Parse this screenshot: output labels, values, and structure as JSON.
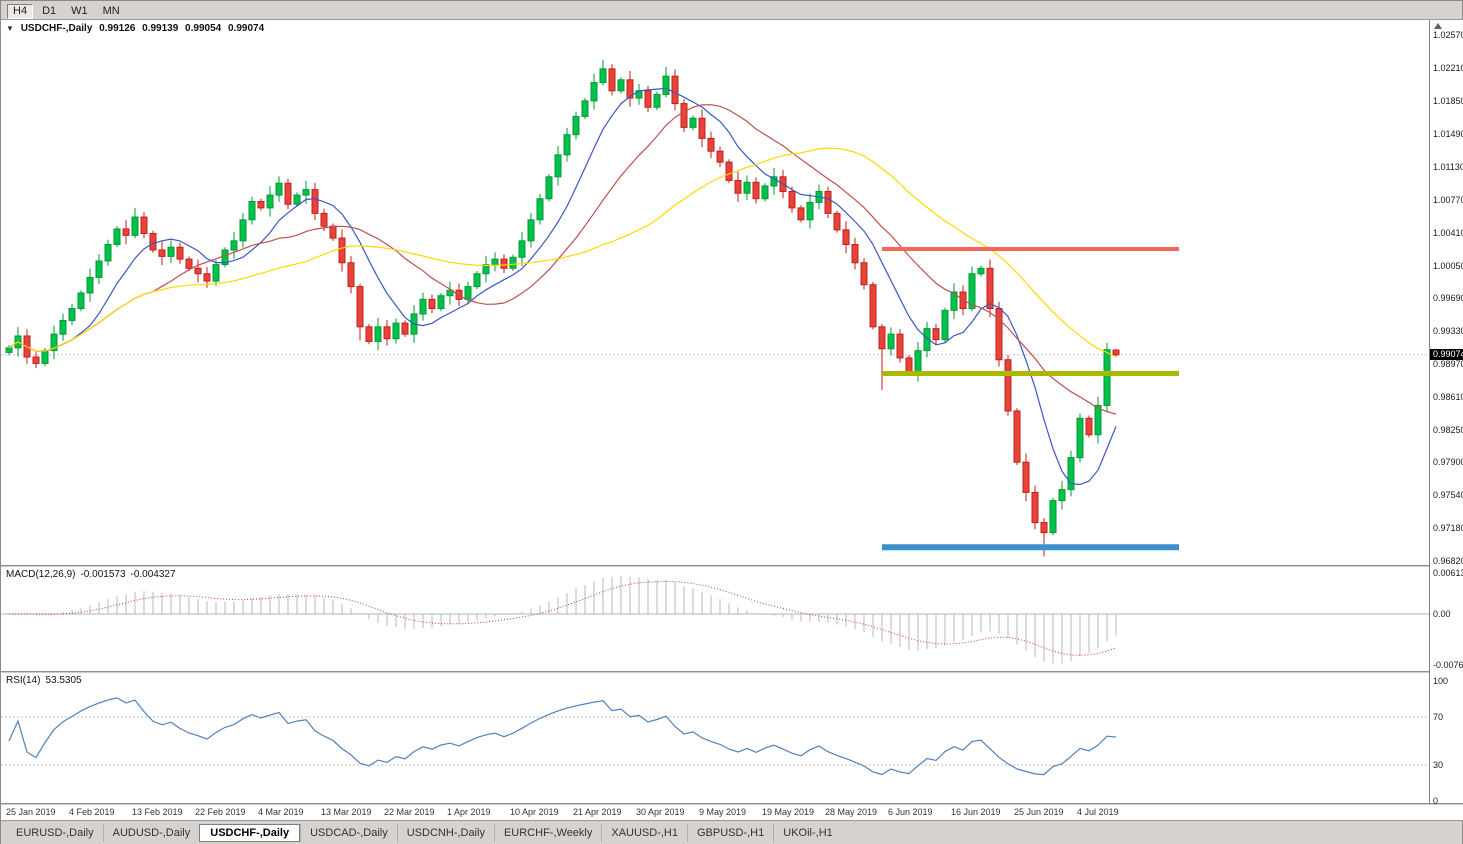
{
  "toolbar": {
    "timeframes": [
      {
        "label": "H4",
        "active": true
      },
      {
        "label": "D1",
        "active": false
      },
      {
        "label": "W1",
        "active": false
      },
      {
        "label": "MN",
        "active": false
      }
    ]
  },
  "chart": {
    "collapse_icon": "▼",
    "symbol": "USDCHF-,Daily",
    "quote": {
      "open": "0.99126",
      "high": "0.99139",
      "low": "0.99054",
      "close": "0.99074"
    },
    "current_price_label": "0.99074",
    "price_ticks": [
      "1.02570",
      "1.02210",
      "1.01850",
      "1.01490",
      "1.01130",
      "1.00770",
      "1.00410",
      "1.00050",
      "0.99690",
      "0.99330",
      "0.98970",
      "0.98610",
      "0.98250",
      "0.97900",
      "0.97540",
      "0.97180",
      "0.96820"
    ]
  },
  "macd_panel": {
    "label": "MACD(12,26,9)",
    "main_value": "-0.001573",
    "signal_value": "-0.004327",
    "axis_ticks": [
      {
        "text": "0.00613",
        "v": 0.00613
      },
      {
        "text": "0.00",
        "v": 0
      },
      {
        "text": "-0.00761",
        "v": -0.00761
      }
    ]
  },
  "rsi_panel": {
    "label": "RSI(14)",
    "value": "53.5305",
    "axis_ticks": [
      {
        "text": "100",
        "v": 100
      },
      {
        "text": "70",
        "v": 70
      },
      {
        "text": "30",
        "v": 30
      },
      {
        "text": "0",
        "v": 0
      }
    ],
    "levels": [
      70,
      30
    ]
  },
  "tabs": {
    "items": [
      {
        "label": "EURUSD-,Daily",
        "active": false
      },
      {
        "label": "AUDUSD-,Daily",
        "active": false
      },
      {
        "label": "USDCHF-,Daily",
        "active": true
      },
      {
        "label": "USDCAD-,Daily",
        "active": false
      },
      {
        "label": "USDCNH-,Daily",
        "active": false
      },
      {
        "label": "EURCHF-,Weekly",
        "active": false
      },
      {
        "label": "XAUUSD-,H1",
        "active": false
      },
      {
        "label": "GBPUSD-,H1",
        "active": false
      },
      {
        "label": "UKOil-,H1",
        "active": false
      }
    ]
  },
  "colors": {
    "up": "#00c24b",
    "up_border": "#009a36",
    "down": "#e8433b",
    "down_border": "#bf2018",
    "ma_fast": "#3a57c8",
    "ma_mid": "#c0504d",
    "ma_slow": "#ffd900",
    "macd_hist": "#b8b8b8",
    "macd_signal": "#cc3b3b",
    "rsi_line": "#4f81bd",
    "grid": "#c8c8c8",
    "price_tag_bg": "#000000",
    "price_tag_text": "#ffffff"
  },
  "chart_data": {
    "type": "candlestick",
    "title": "USDCHF-,Daily",
    "timeframe": "Daily",
    "ylim": [
      0.9682,
      1.0257
    ],
    "x_labels": [
      "25 Jan 2019",
      "4 Feb 2019",
      "13 Feb 2019",
      "22 Feb 2019",
      "4 Mar 2019",
      "13 Mar 2019",
      "22 Mar 2019",
      "1 Apr 2019",
      "10 Apr 2019",
      "21 Apr 2019",
      "30 Apr 2019",
      "9 May 2019",
      "19 May 2019",
      "28 May 2019",
      "6 Jun 2019",
      "16 Jun 2019",
      "25 Jun 2019",
      "4 Jul 2019"
    ],
    "x_label_step": 7,
    "first_open": 0.991,
    "closes": [
      0.9915,
      0.9928,
      0.9905,
      0.9898,
      0.9912,
      0.993,
      0.9945,
      0.9958,
      0.9975,
      0.9992,
      1.001,
      1.0028,
      1.0045,
      1.0038,
      1.0058,
      1.004,
      1.0022,
      1.0015,
      1.0025,
      1.0012,
      1.0002,
      0.9996,
      0.9988,
      1.0006,
      1.0022,
      1.0032,
      1.0055,
      1.0075,
      1.0068,
      1.0082,
      1.0095,
      1.0072,
      1.0082,
      1.0088,
      1.0062,
      1.0048,
      1.0035,
      1.0008,
      0.9982,
      0.9938,
      0.9922,
      0.9938,
      0.9925,
      0.9942,
      0.993,
      0.9952,
      0.9968,
      0.9958,
      0.9972,
      0.9978,
      0.9968,
      0.9982,
      0.9996,
      1.0006,
      1.0012,
      1.0002,
      1.0014,
      1.0032,
      1.0055,
      1.0078,
      1.0102,
      1.0126,
      1.0148,
      1.0168,
      1.0185,
      1.0205,
      1.022,
      1.0196,
      1.0208,
      1.0188,
      1.0196,
      1.0178,
      1.0192,
      1.0212,
      1.0182,
      1.0156,
      1.0166,
      1.0144,
      1.013,
      1.0118,
      1.0098,
      1.0084,
      1.0096,
      1.0078,
      1.0092,
      1.0102,
      1.0086,
      1.0068,
      1.0055,
      1.0074,
      1.0086,
      1.0062,
      1.0044,
      1.0028,
      1.0008,
      0.9984,
      0.9938,
      0.9914,
      0.993,
      0.9904,
      0.9888,
      0.9912,
      0.9936,
      0.9924,
      0.9956,
      0.9976,
      0.9958,
      0.9996,
      1.0002,
      0.9958,
      0.9902,
      0.9846,
      0.979,
      0.9757,
      0.9724,
      0.9713,
      0.9748,
      0.976,
      0.9795,
      0.9838,
      0.982,
      0.9852,
      0.9913,
      0.99074
    ],
    "wick_overrides": {
      "14": [
        0.001,
        0.0003
      ],
      "39": [
        0.0003,
        0.0015
      ],
      "66": [
        0.001,
        0.0003
      ],
      "73": [
        0.001,
        0.0003
      ],
      "97": [
        0.0003,
        0.0045
      ],
      "107": [
        0.0008,
        0.0003
      ],
      "115": [
        0.0005,
        0.0026
      ]
    },
    "last_candle_ohlc": [
      0.99126,
      0.99139,
      0.99054,
      0.99074
    ],
    "moving_averages": [
      {
        "name": "ma-fast",
        "period": 8,
        "color": "#3a57c8"
      },
      {
        "name": "ma-mid",
        "period": 17,
        "color": "#c0504d"
      },
      {
        "name": "ma-slow",
        "period": 34,
        "color": "#ffd900"
      }
    ],
    "hlines": [
      {
        "name": "resistance-line",
        "price": 1.0023,
        "color": "#f4655a",
        "width": 4,
        "from_index": 97,
        "to_index": 130
      },
      {
        "name": "support-mid-line",
        "price": 0.9887,
        "color": "#abb800",
        "width": 5,
        "from_index": 97,
        "to_index": 130
      },
      {
        "name": "support-low-line",
        "price": 0.9697,
        "color": "#3d8fd1",
        "width": 6,
        "from_index": 97,
        "to_index": 130
      }
    ],
    "current_price": 0.99074,
    "macd": {
      "fast": 12,
      "slow": 26,
      "signal": 9,
      "ymax": 0.00613,
      "ymin": -0.00761
    },
    "rsi": {
      "period": 14,
      "ymax": 100,
      "ymin": 0,
      "current": 53.5305
    }
  }
}
